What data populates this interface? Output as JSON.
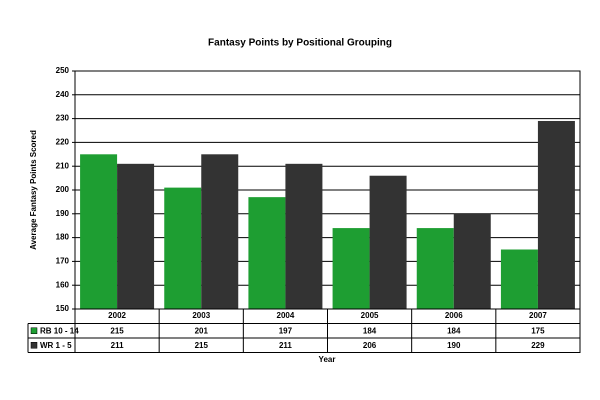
{
  "chart_data": {
    "type": "bar",
    "title": "Fantasy Points by Positional Grouping",
    "y_label": "Average Fantasy Points Scored",
    "x_label": "Year",
    "categories": [
      "2002",
      "2003",
      "2004",
      "2005",
      "2006",
      "2007"
    ],
    "series": [
      {
        "name": "RB 10 - 14",
        "color": "#1e9e32",
        "values": [
          215,
          201,
          197,
          184,
          184,
          175
        ]
      },
      {
        "name": "WR 1 - 5",
        "color": "#333333",
        "values": [
          211,
          215,
          211,
          206,
          190,
          229
        ]
      }
    ],
    "ylim": [
      150,
      250
    ],
    "yticks": [
      150,
      160,
      170,
      180,
      190,
      200,
      210,
      220,
      230,
      240,
      250
    ],
    "grid": true,
    "data_table": true
  }
}
